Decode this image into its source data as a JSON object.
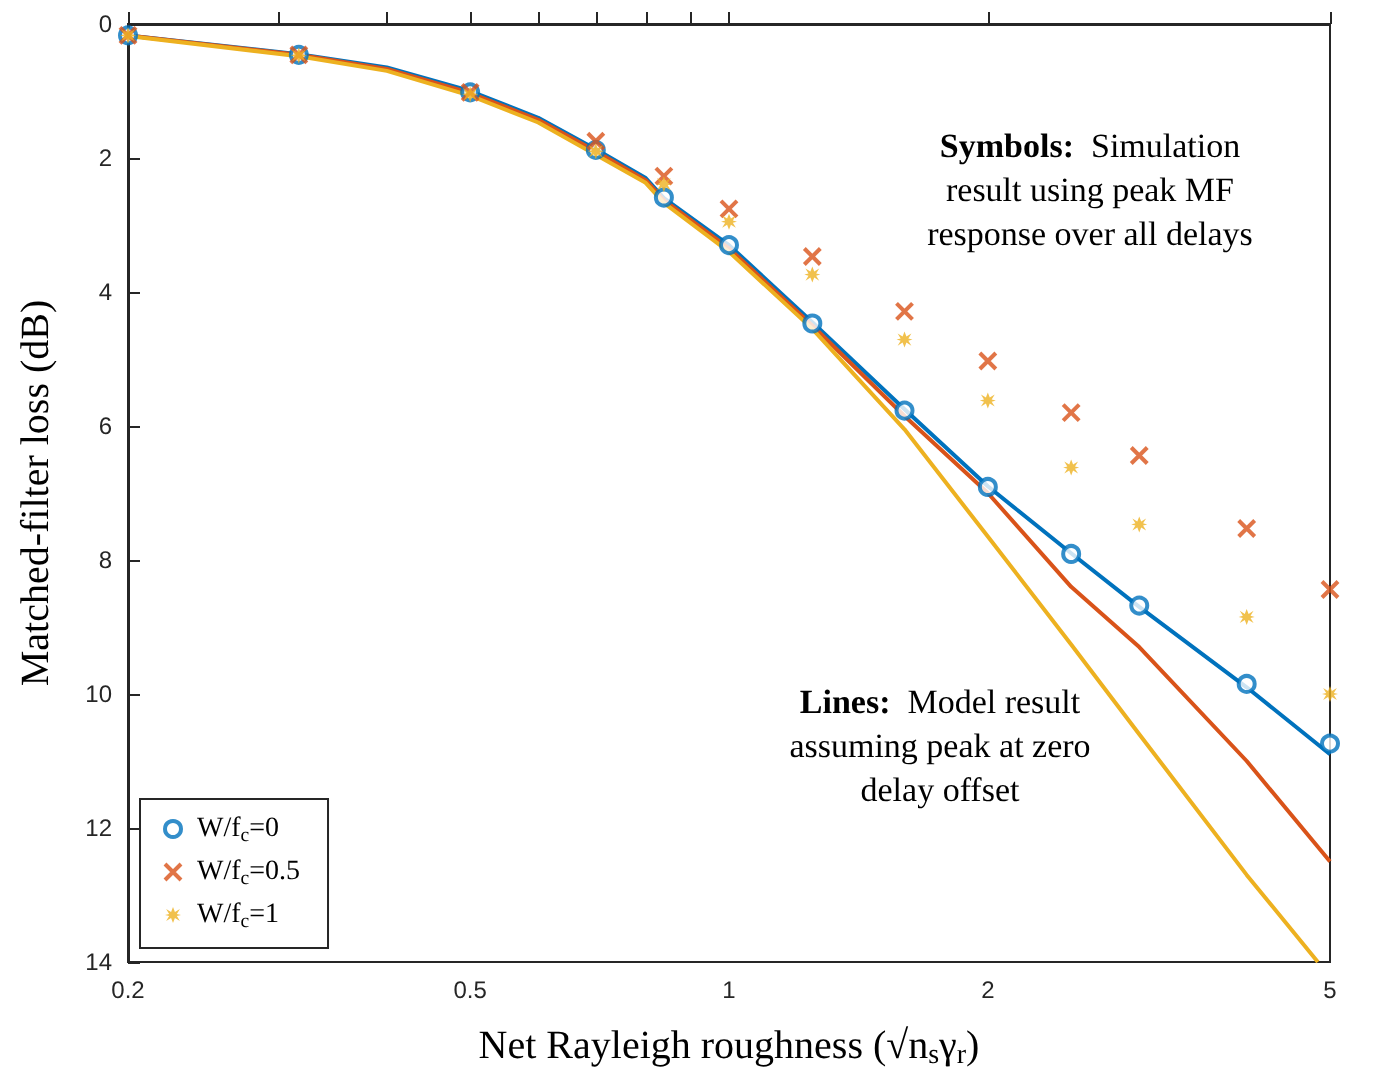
{
  "chart_data": {
    "type": "scatter",
    "xlabel": "Net Rayleigh roughness (√n$_{s}$γ$_{r}$)",
    "ylabel": "Matched-filter loss (dB)",
    "log": "x",
    "x": [
      0.2,
      0.316,
      0.5,
      0.7,
      0.84,
      1,
      1.25,
      1.6,
      2,
      2.5,
      3,
      4,
      5
    ],
    "series": [
      {
        "name": "W/f$_{c}$=0",
        "marker": "circle",
        "color": "#0072bd",
        "values": [
          0.17,
          0.46,
          1.02,
          1.88,
          2.59,
          3.3,
          4.47,
          5.77,
          6.91,
          7.91,
          8.68,
          9.85,
          10.74
        ]
      },
      {
        "name": "W/f$_{c}$=0.5",
        "marker": "cross",
        "color": "#d95319",
        "values": [
          0.17,
          0.46,
          1.02,
          1.75,
          2.27,
          2.76,
          3.47,
          4.29,
          5.03,
          5.8,
          6.44,
          7.53,
          8.44
        ]
      },
      {
        "name": "W/f$_{c}$=1",
        "marker": "star",
        "color": "#edb120",
        "values": [
          0.17,
          0.47,
          1.05,
          1.9,
          2.39,
          2.95,
          3.74,
          4.71,
          5.62,
          6.62,
          7.47,
          8.85,
          10
        ]
      },
      {
        "type": "line",
        "color": "#0072bd",
        "x": [
          0.2,
          0.316,
          0.4,
          0.5,
          0.6,
          0.7,
          0.8,
          0.84,
          1,
          1.25,
          1.6,
          2,
          2.5,
          3,
          4,
          5
        ],
        "values": [
          0.17,
          0.45,
          0.65,
          1.0,
          1.4,
          1.87,
          2.3,
          2.6,
          3.3,
          4.45,
          5.75,
          6.9,
          7.9,
          8.7,
          9.9,
          10.9
        ]
      },
      {
        "type": "line",
        "color": "#d95319",
        "x": [
          0.2,
          0.316,
          0.4,
          0.5,
          0.6,
          0.7,
          0.8,
          0.84,
          1,
          1.25,
          1.6,
          2,
          2.5,
          3,
          4,
          5
        ],
        "values": [
          0.17,
          0.46,
          0.67,
          1.03,
          1.43,
          1.9,
          2.33,
          2.63,
          3.35,
          4.5,
          5.85,
          7.0,
          8.4,
          9.3,
          11.0,
          12.5
        ]
      },
      {
        "type": "line",
        "color": "#edb120",
        "x": [
          0.2,
          0.316,
          0.4,
          0.5,
          0.6,
          0.7,
          0.8,
          0.84,
          1,
          1.25,
          1.6,
          2,
          2.5,
          3,
          4,
          4.84
        ],
        "values": [
          0.18,
          0.48,
          0.7,
          1.07,
          1.47,
          1.95,
          2.37,
          2.67,
          3.4,
          4.55,
          6.05,
          7.65,
          9.26,
          10.6,
          12.7,
          14
        ]
      }
    ],
    "xlim": [
      0.2,
      5
    ],
    "xticks": [
      0.2,
      {
        "value": 0.3,
        "label": null
      },
      {
        "value": 0.4,
        "label": null
      },
      0.5,
      {
        "value": 0.6,
        "label": null
      },
      {
        "value": 0.7,
        "label": null
      },
      {
        "value": 0.8,
        "label": null
      },
      {
        "value": 0.9,
        "label": null
      },
      1,
      2,
      5
    ],
    "ylim": [
      14,
      0
    ],
    "yticks": [
      0,
      2,
      4,
      6,
      8,
      10,
      12,
      14
    ],
    "grid": false,
    "legend": "bottom left",
    "annotations": [
      "Symbols:  Simulation\nresult using peak MF\nresponse over all delays",
      "Lines:  Model result\nassuming peak at zero\ndelay offset"
    ]
  }
}
